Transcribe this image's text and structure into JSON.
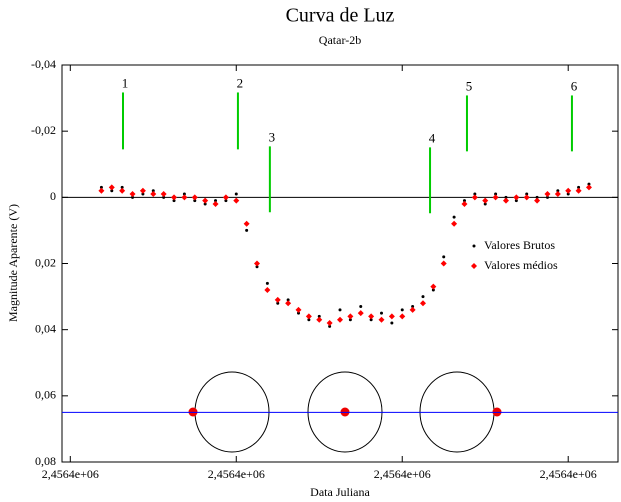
{
  "chart_data": {
    "type": "scatter",
    "title": "Curva de Luz",
    "subtitle": "Qatar-2b",
    "x_label": "Data Juliana",
    "y_label": "Magnitude Aparente (V)",
    "x": [
      2456400.6475,
      2456400.65,
      2456400.6525,
      2456400.655,
      2456400.6575,
      2456400.66,
      2456400.6625,
      2456400.665,
      2456400.6675,
      2456400.67,
      2456400.6725,
      2456400.675,
      2456400.6775,
      2456400.68,
      2456400.6825,
      2456400.685,
      2456400.6875,
      2456400.69,
      2456400.6925,
      2456400.695,
      2456400.6975,
      2456400.7,
      2456400.7025,
      2456400.705,
      2456400.7075,
      2456400.71,
      2456400.7125,
      2456400.715,
      2456400.7175,
      2456400.72,
      2456400.7225,
      2456400.725,
      2456400.7275,
      2456400.73,
      2456400.7325,
      2456400.735,
      2456400.7375,
      2456400.74,
      2456400.7425,
      2456400.745,
      2456400.7475,
      2456400.75,
      2456400.7525,
      2456400.755,
      2456400.7575,
      2456400.76,
      2456400.7625,
      2456400.765
    ],
    "series": [
      {
        "name": "Valores Brutos",
        "color": "#000000",
        "marker": "dot",
        "values": [
          -0.003,
          -0.002,
          -0.003,
          0.0,
          -0.001,
          -0.002,
          0.0,
          0.001,
          -0.001,
          0.001,
          0.002,
          0.001,
          0.001,
          -0.001,
          0.01,
          0.021,
          0.026,
          0.032,
          0.031,
          0.035,
          0.037,
          0.036,
          0.039,
          0.034,
          0.037,
          0.033,
          0.037,
          0.035,
          0.038,
          0.034,
          0.033,
          0.03,
          0.028,
          0.018,
          0.006,
          0.001,
          -0.001,
          0.002,
          -0.001,
          0.0,
          0.001,
          -0.001,
          0.0,
          0.0,
          -0.002,
          -0.001,
          -0.003,
          -0.004
        ]
      },
      {
        "name": "Valores médios",
        "color": "#ff0000",
        "marker": "diamond",
        "values": [
          -0.002,
          -0.003,
          -0.002,
          -0.001,
          -0.002,
          -0.001,
          -0.001,
          0.0,
          0.0,
          0.0,
          0.001,
          0.002,
          0.0,
          0.001,
          0.008,
          0.02,
          0.028,
          0.031,
          0.032,
          0.034,
          0.036,
          0.037,
          0.038,
          0.037,
          0.036,
          0.035,
          0.036,
          0.037,
          0.036,
          0.036,
          0.034,
          0.032,
          0.027,
          0.02,
          0.008,
          0.002,
          0.0,
          0.001,
          0.0,
          0.001,
          0.0,
          0.0,
          0.001,
          -0.001,
          -0.001,
          -0.002,
          -0.002,
          -0.003
        ]
      }
    ],
    "xlim": [
      2456400.638,
      2456400.772
    ],
    "xticks": [
      {
        "value": 2456400.64,
        "label": "2,4564e+06"
      },
      {
        "value": 2456400.68,
        "label": "2,4564e+06"
      },
      {
        "value": 2456400.72,
        "label": "2,4564e+06"
      },
      {
        "value": 2456400.76,
        "label": "2,4564e+06"
      }
    ],
    "ylim": [
      -0.04,
      0.08
    ],
    "y_inverted": true,
    "yticks": [
      {
        "value": -0.04,
        "label": "-0,04"
      },
      {
        "value": -0.02,
        "label": "-0,02"
      },
      0,
      {
        "value": 0.02,
        "label": "0,02"
      },
      {
        "value": 0.04,
        "label": "0,04"
      },
      {
        "value": 0.06,
        "label": "0,06"
      },
      {
        "value": 0.08,
        "label": "0,08"
      }
    ],
    "reference_lines": [
      {
        "value": 0,
        "color": "#000000"
      },
      {
        "value": 0.065,
        "color": "#0000ff"
      }
    ],
    "markers": [
      {
        "label": "1",
        "x": 2456400.6527,
        "y": [
          -0.0317,
          -0.0145
        ]
      },
      {
        "label": "2",
        "x": 2456400.6804,
        "y": [
          -0.0317,
          -0.0145
        ]
      },
      {
        "label": "3",
        "x": 2456400.6881,
        "y": [
          -0.0154,
          0.0045
        ]
      },
      {
        "label": "4",
        "x": 2456400.7267,
        "y": [
          -0.0151,
          0.0048
        ]
      },
      {
        "label": "5",
        "x": 2456400.7356,
        "y": [
          -0.0308,
          -0.0139
        ]
      },
      {
        "label": "6",
        "x": 2456400.7609,
        "y": [
          -0.0308,
          -0.0139
        ]
      }
    ],
    "marker_color": "#00cc00",
    "legend": "right"
  }
}
